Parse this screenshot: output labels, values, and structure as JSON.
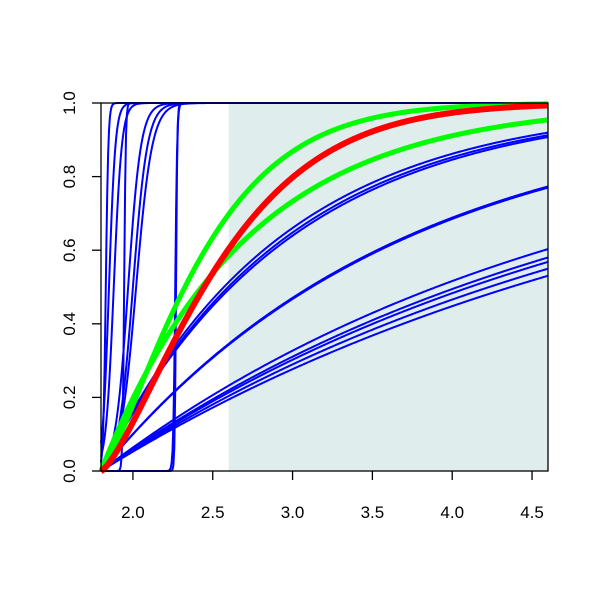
{
  "chart_data": {
    "type": "line",
    "title": "",
    "xlabel": "",
    "ylabel": "",
    "xlim": [
      1.8,
      4.6
    ],
    "ylim": [
      0,
      1
    ],
    "xticks": [
      2.0,
      2.5,
      3.0,
      3.5,
      4.0,
      4.5
    ],
    "yticks": [
      0.0,
      0.2,
      0.4,
      0.6,
      0.8,
      1.0
    ],
    "xtick_labels": [
      "2.0",
      "2.5",
      "3.0",
      "3.5",
      "4.0",
      "4.5"
    ],
    "ytick_labels": [
      "0.0",
      "0.2",
      "0.4",
      "0.6",
      "0.8",
      "1.0"
    ],
    "grid": false,
    "shaded_region": {
      "x_from": 2.6,
      "x_to": 4.6,
      "color": "#e0eded"
    },
    "x0": 1.8,
    "series": [
      {
        "color": "#0000ff",
        "kind": "logistic",
        "center": 1.83,
        "scale": 0.008
      },
      {
        "color": "#0000ff",
        "kind": "logistic",
        "center": 1.85,
        "scale": 0.02
      },
      {
        "color": "#0000ff",
        "kind": "logistic",
        "center": 1.88,
        "scale": 0.025
      },
      {
        "color": "#0000ff",
        "kind": "logistic",
        "center": 1.945,
        "scale": 0.005
      },
      {
        "color": "#0000ff",
        "kind": "logistic",
        "center": 1.97,
        "scale": 0.04
      },
      {
        "color": "#0000ff",
        "kind": "logistic",
        "center": 2.0,
        "scale": 0.045
      },
      {
        "color": "#0000ff",
        "kind": "logistic",
        "center": 2.02,
        "scale": 0.05
      },
      {
        "color": "#0000ff",
        "kind": "logistic",
        "center": 2.265,
        "scale": 0.006
      },
      {
        "color": "#0000ff",
        "kind": "logistic",
        "center": 2.27,
        "scale": 0.004
      },
      {
        "color": "#0000ff",
        "kind": "exp",
        "k": 0.85
      },
      {
        "color": "#0000ff",
        "kind": "exp",
        "k": 0.87
      },
      {
        "color": "#0000ff",
        "kind": "exp",
        "k": 0.9
      },
      {
        "color": "#0000ff",
        "kind": "exp",
        "k": 0.53
      },
      {
        "color": "#0000ff",
        "kind": "exp",
        "k": 0.525
      },
      {
        "color": "#0000ff",
        "kind": "exp",
        "k": 0.33
      },
      {
        "color": "#0000ff",
        "kind": "exp",
        "k": 0.31
      },
      {
        "color": "#0000ff",
        "kind": "exp",
        "k": 0.3
      },
      {
        "color": "#0000ff",
        "kind": "exp",
        "k": 0.285
      },
      {
        "color": "#0000ff",
        "kind": "exp",
        "k": 0.27
      },
      {
        "color": "#00ff00",
        "kind": "exp",
        "k": 1.1,
        "width": 5
      },
      {
        "color": "#00ff00",
        "kind": "exp",
        "k": 1.6,
        "power": 1.3,
        "width": 5
      },
      {
        "color": "#ff0000",
        "kind": "exp",
        "k": 1.25,
        "power": 1.35,
        "width": 6
      }
    ]
  }
}
